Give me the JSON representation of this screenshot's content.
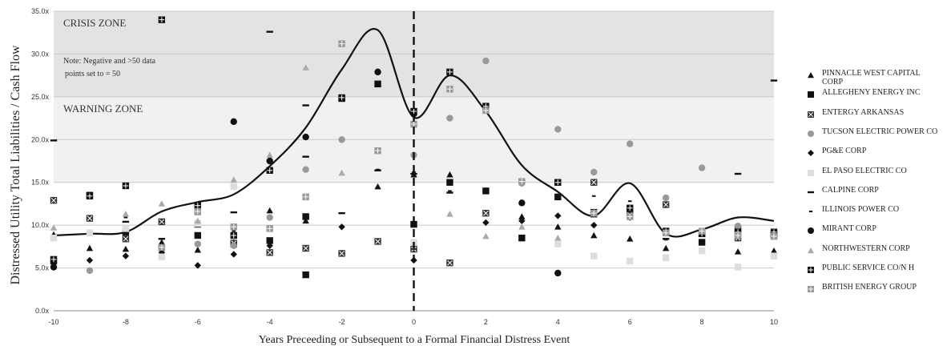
{
  "chart_data": {
    "type": "scatter",
    "xlabel": "Years Preceeding or Subsequent to a Formal Financial Distress Event",
    "ylabel": "Distressed Utility Total Liabilities / Cash Flow",
    "xlim": [
      -10,
      10
    ],
    "ylim": [
      0,
      35
    ],
    "x_ticks": [
      "-10",
      "-8",
      "-6",
      "-4",
      "-2",
      "0",
      "2",
      "4",
      "6",
      "8",
      "10"
    ],
    "y_ticks": [
      "0.0x",
      "5.0x",
      "10.0x",
      "15.0x",
      "20.0x",
      "25.0x",
      "30.0x",
      "35.0x"
    ],
    "grid": true,
    "legend_position": "right",
    "event_line_x": 0,
    "zones": [
      {
        "label": "CRISIS ZONE",
        "from": 25,
        "to": 35,
        "color": "#e3e3e3"
      },
      {
        "label": "WARNING ZONE",
        "from": 15,
        "to": 25,
        "color": "#f1f1f1"
      }
    ],
    "note": [
      "Note: Negative and >50 data",
      "points set to = 50"
    ],
    "series": [
      {
        "name": "PINNACLE WEST CAPITAL CORP",
        "marker": "triangle",
        "color": "#111111",
        "points": [
          [
            -10,
            8.9
          ],
          [
            -9,
            7.3
          ],
          [
            -8,
            7.2
          ],
          [
            -7,
            8.0
          ],
          [
            -6,
            7.1
          ],
          [
            -5,
            8.0
          ],
          [
            -4,
            11.7
          ],
          [
            -3,
            10.5
          ],
          [
            -1,
            14.5
          ],
          [
            0,
            15.9
          ],
          [
            1,
            15.9
          ],
          [
            3,
            11.0
          ],
          [
            4,
            9.8
          ],
          [
            5,
            8.8
          ],
          [
            6,
            8.4
          ],
          [
            7,
            7.3
          ],
          [
            9,
            6.9
          ],
          [
            10,
            7.0
          ]
        ]
      },
      {
        "name": "ALLEGHENY ENERGY INC",
        "marker": "square",
        "color": "#111111",
        "points": [
          [
            -10,
            5.8
          ],
          [
            -9,
            13.5
          ],
          [
            -8,
            9.2
          ],
          [
            -7,
            7.4
          ],
          [
            -6,
            8.8
          ],
          [
            -5,
            7.8
          ],
          [
            -4,
            8.2
          ],
          [
            -3,
            11.0
          ],
          [
            -3,
            4.2
          ],
          [
            -2,
            24.8
          ],
          [
            -1,
            26.5
          ],
          [
            0,
            10.1
          ],
          [
            1,
            15.0
          ],
          [
            2,
            14.0
          ],
          [
            3,
            8.5
          ],
          [
            4,
            13.3
          ],
          [
            5,
            11.5
          ],
          [
            6,
            11.8
          ],
          [
            7,
            9.3
          ],
          [
            8,
            8.0
          ],
          [
            9,
            9.6
          ],
          [
            10,
            8.9
          ]
        ]
      },
      {
        "name": "ENTERGY ARKANSAS",
        "marker": "xsquare",
        "color": "#333333",
        "points": [
          [
            -10,
            12.9
          ],
          [
            -9,
            10.8
          ],
          [
            -8,
            8.4
          ],
          [
            -7,
            10.4
          ],
          [
            -6,
            10.1
          ],
          [
            -5,
            7.9
          ],
          [
            -4,
            6.8
          ],
          [
            -3,
            7.3
          ],
          [
            -2,
            6.7
          ],
          [
            -1,
            8.1
          ],
          [
            0,
            7.2
          ],
          [
            1,
            5.6
          ],
          [
            2,
            11.4
          ],
          [
            4,
            15.0
          ],
          [
            5,
            15.0
          ],
          [
            6,
            11.2
          ],
          [
            7,
            12.4
          ],
          [
            8,
            9.0
          ],
          [
            9,
            8.5
          ],
          [
            10,
            8.8
          ]
        ]
      },
      {
        "name": "TUCSON ELECTRIC POWER CO",
        "marker": "circle",
        "color": "#999999",
        "points": [
          [
            -9,
            4.7
          ],
          [
            -7,
            7.2
          ],
          [
            -6,
            7.8
          ],
          [
            -5,
            7.6
          ],
          [
            -4,
            10.9
          ],
          [
            -3,
            16.5
          ],
          [
            -2,
            20.0
          ],
          [
            0,
            18.2
          ],
          [
            1,
            22.5
          ],
          [
            2,
            29.2
          ],
          [
            3,
            14.9
          ],
          [
            4,
            21.2
          ],
          [
            5,
            16.2
          ],
          [
            6,
            19.5
          ],
          [
            7,
            13.2
          ],
          [
            8,
            16.7
          ],
          [
            9,
            9.9
          ]
        ]
      },
      {
        "name": "PG&E CORP",
        "marker": "diamond",
        "color": "#111111",
        "points": [
          [
            -10,
            5.1
          ],
          [
            -9,
            5.9
          ],
          [
            -8,
            6.4
          ],
          [
            -7,
            6.8
          ],
          [
            -6,
            5.3
          ],
          [
            -5,
            6.6
          ],
          [
            -4,
            7.6
          ],
          [
            -2,
            9.8
          ],
          [
            0,
            5.9
          ],
          [
            2,
            10.3
          ],
          [
            3,
            10.5
          ],
          [
            4,
            11.1
          ],
          [
            5,
            10.0
          ],
          [
            6,
            10.9
          ]
        ]
      },
      {
        "name": "EL PASO ELECTRIC CO",
        "marker": "square",
        "color": "#dddddd",
        "points": [
          [
            -10,
            8.5
          ],
          [
            -9,
            9.1
          ],
          [
            -8,
            9.6
          ],
          [
            -7,
            6.3
          ],
          [
            -6,
            10.2
          ],
          [
            -5,
            14.5
          ],
          [
            0,
            8.0
          ],
          [
            3,
            15.1
          ],
          [
            4,
            7.8
          ],
          [
            5,
            6.4
          ],
          [
            6,
            5.8
          ],
          [
            7,
            6.2
          ],
          [
            8,
            7.0
          ],
          [
            9,
            5.1
          ],
          [
            10,
            6.4
          ]
        ]
      },
      {
        "name": "CALPINE CORP",
        "marker": "dash",
        "color": "#111111",
        "points": [
          [
            -10,
            19.9
          ],
          [
            -8,
            10.4
          ],
          [
            -7,
            8.4
          ],
          [
            -6,
            11.3
          ],
          [
            -5,
            11.5
          ],
          [
            -4,
            32.6
          ],
          [
            -3,
            24.0
          ],
          [
            -3,
            18.0
          ],
          [
            -2,
            11.4
          ],
          [
            -1,
            16.4
          ],
          [
            0,
            16.0
          ],
          [
            1,
            13.8
          ],
          [
            7,
            8.4
          ],
          [
            9,
            16.0
          ],
          [
            10,
            26.9
          ]
        ]
      },
      {
        "name": "ILLINOIS POWER CO",
        "marker": "smalldash",
        "color": "#111111",
        "points": [
          [
            -8,
            10.9
          ],
          [
            -6,
            11.4
          ],
          [
            -5,
            9.3
          ],
          [
            -1,
            16.5
          ],
          [
            0,
            16.2
          ],
          [
            1,
            14.0
          ],
          [
            5,
            13.4
          ],
          [
            6,
            12.8
          ],
          [
            7,
            8.3
          ],
          [
            10,
            8.4
          ]
        ]
      },
      {
        "name": "MIRANT CORP",
        "marker": "circle",
        "color": "#111111",
        "points": [
          [
            -10,
            5.1
          ],
          [
            -5,
            22.1
          ],
          [
            -4,
            17.5
          ],
          [
            -3,
            20.3
          ],
          [
            -1,
            27.9
          ],
          [
            0,
            23.0
          ],
          [
            3,
            12.6
          ],
          [
            4,
            4.4
          ]
        ]
      },
      {
        "name": "NORTHWESTERN CORP",
        "marker": "triangle",
        "color": "#aaaaaa",
        "points": [
          [
            -10,
            9.7
          ],
          [
            -8,
            11.3
          ],
          [
            -7,
            12.5
          ],
          [
            -6,
            10.5
          ],
          [
            -5,
            15.3
          ],
          [
            -4,
            18.2
          ],
          [
            -3,
            28.4
          ],
          [
            -2,
            16.1
          ],
          [
            1,
            11.3
          ],
          [
            2,
            8.7
          ],
          [
            3,
            9.8
          ],
          [
            4,
            8.5
          ],
          [
            5,
            11.5
          ],
          [
            10,
            8.6
          ]
        ]
      },
      {
        "name": "PUBLIC SERVICE CO/N H",
        "marker": "plussquare",
        "color": "#111111",
        "points": [
          [
            -10,
            6.0
          ],
          [
            -9,
            13.4
          ],
          [
            -8,
            14.6
          ],
          [
            -7,
            34.0
          ],
          [
            -6,
            12.3
          ],
          [
            -5,
            8.8
          ],
          [
            -4,
            16.4
          ],
          [
            -2,
            24.9
          ],
          [
            0,
            23.3
          ],
          [
            1,
            27.9
          ],
          [
            2,
            23.9
          ],
          [
            4,
            15.0
          ],
          [
            5,
            11.3
          ],
          [
            6,
            12.0
          ],
          [
            7,
            9.3
          ],
          [
            8,
            9.0
          ],
          [
            9,
            9.2
          ],
          [
            10,
            9.2
          ]
        ]
      },
      {
        "name": "BRITISH ENERGY GROUP",
        "marker": "plussquare",
        "color": "#999999",
        "points": [
          [
            -7,
            7.4
          ],
          [
            -6,
            11.6
          ],
          [
            -5,
            9.8
          ],
          [
            -4,
            9.6
          ],
          [
            -3,
            13.3
          ],
          [
            -2,
            31.2
          ],
          [
            -1,
            18.7
          ],
          [
            0,
            21.8
          ],
          [
            1,
            25.9
          ],
          [
            2,
            23.4
          ],
          [
            3,
            15.1
          ],
          [
            5,
            11.4
          ],
          [
            6,
            11.0
          ],
          [
            7,
            9.1
          ],
          [
            8,
            9.3
          ],
          [
            9,
            8.8
          ],
          [
            10,
            8.7
          ]
        ]
      }
    ],
    "trend_line": {
      "x": [
        -10,
        -9,
        -8,
        -7,
        -6,
        -5,
        -4,
        -3,
        -2,
        -1,
        0,
        1,
        2,
        3,
        4,
        5,
        6,
        7,
        8,
        9,
        10
      ],
      "y": [
        8.8,
        9.0,
        9.2,
        11.6,
        12.7,
        13.6,
        16.9,
        21.4,
        28.2,
        32.8,
        22.6,
        27.5,
        23.3,
        17.0,
        13.9,
        11.1,
        14.9,
        9.0,
        9.5,
        10.9,
        10.5
      ]
    }
  }
}
